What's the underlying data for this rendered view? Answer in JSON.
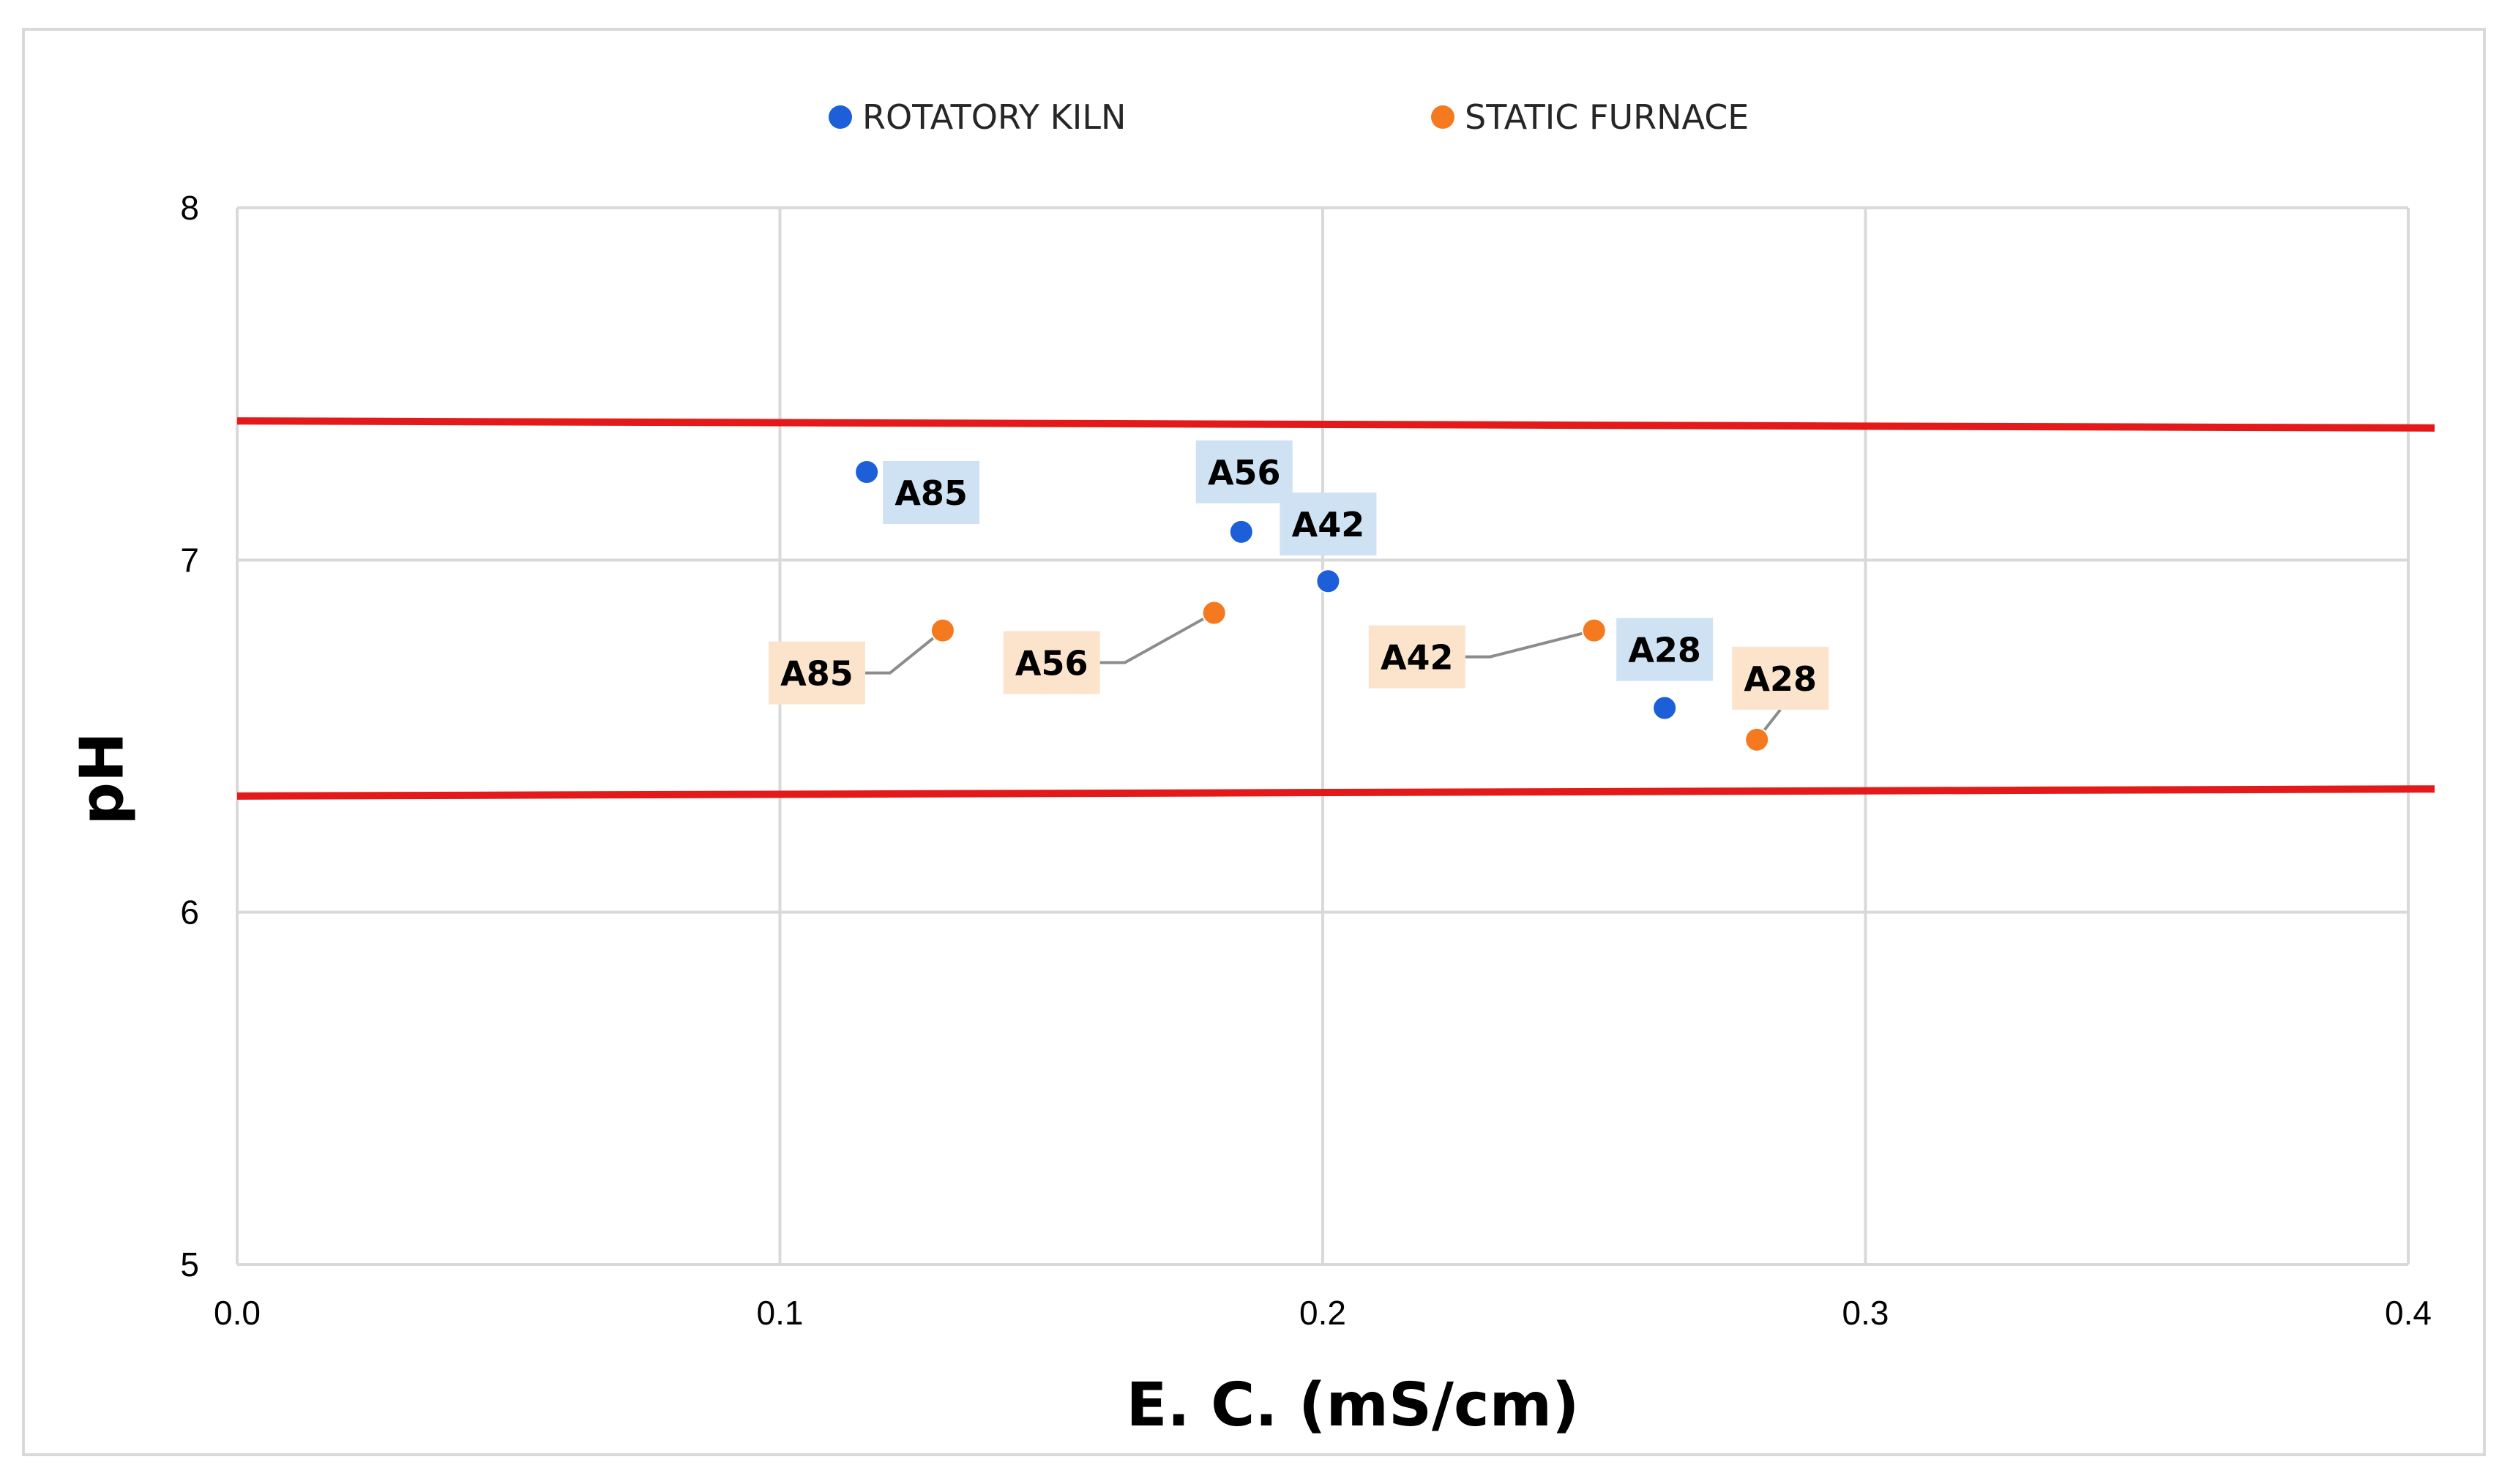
{
  "chart_data": {
    "type": "scatter",
    "title": "",
    "xlabel": "E. C. (mS/cm)",
    "ylabel": "pH",
    "xlim": [
      0.0,
      0.4
    ],
    "ylim": [
      5,
      8
    ],
    "x_ticks": [
      "0.0",
      "0.1",
      "0.2",
      "0.3",
      "0.4"
    ],
    "y_ticks": [
      "5",
      "6",
      "7",
      "8"
    ],
    "grid": true,
    "legend_position": "top-center",
    "series": [
      {
        "name": "ROTATORY KILN",
        "color": "#1c5fd8",
        "label_bg": "#cfe2f3",
        "points": [
          {
            "label": "A85",
            "x": 0.116,
            "y": 7.25
          },
          {
            "label": "A56",
            "x": 0.185,
            "y": 7.08
          },
          {
            "label": "A42",
            "x": 0.201,
            "y": 6.94
          },
          {
            "label": "A28",
            "x": 0.263,
            "y": 6.58
          }
        ]
      },
      {
        "name": "STATIC FURNACE",
        "color": "#f5791f",
        "label_bg": "#fce4cc",
        "points": [
          {
            "label": "A85",
            "x": 0.13,
            "y": 6.8
          },
          {
            "label": "A56",
            "x": 0.18,
            "y": 6.85
          },
          {
            "label": "A42",
            "x": 0.25,
            "y": 6.8
          },
          {
            "label": "A28",
            "x": 0.28,
            "y": 6.49
          }
        ]
      }
    ],
    "reference_lines": [
      {
        "name": "upper-limit",
        "color": "#e41a1a",
        "y_start": 7.395,
        "y_end": 7.375
      },
      {
        "name": "lower-limit",
        "color": "#e41a1a",
        "y_start": 6.33,
        "y_end": 6.35
      }
    ]
  }
}
